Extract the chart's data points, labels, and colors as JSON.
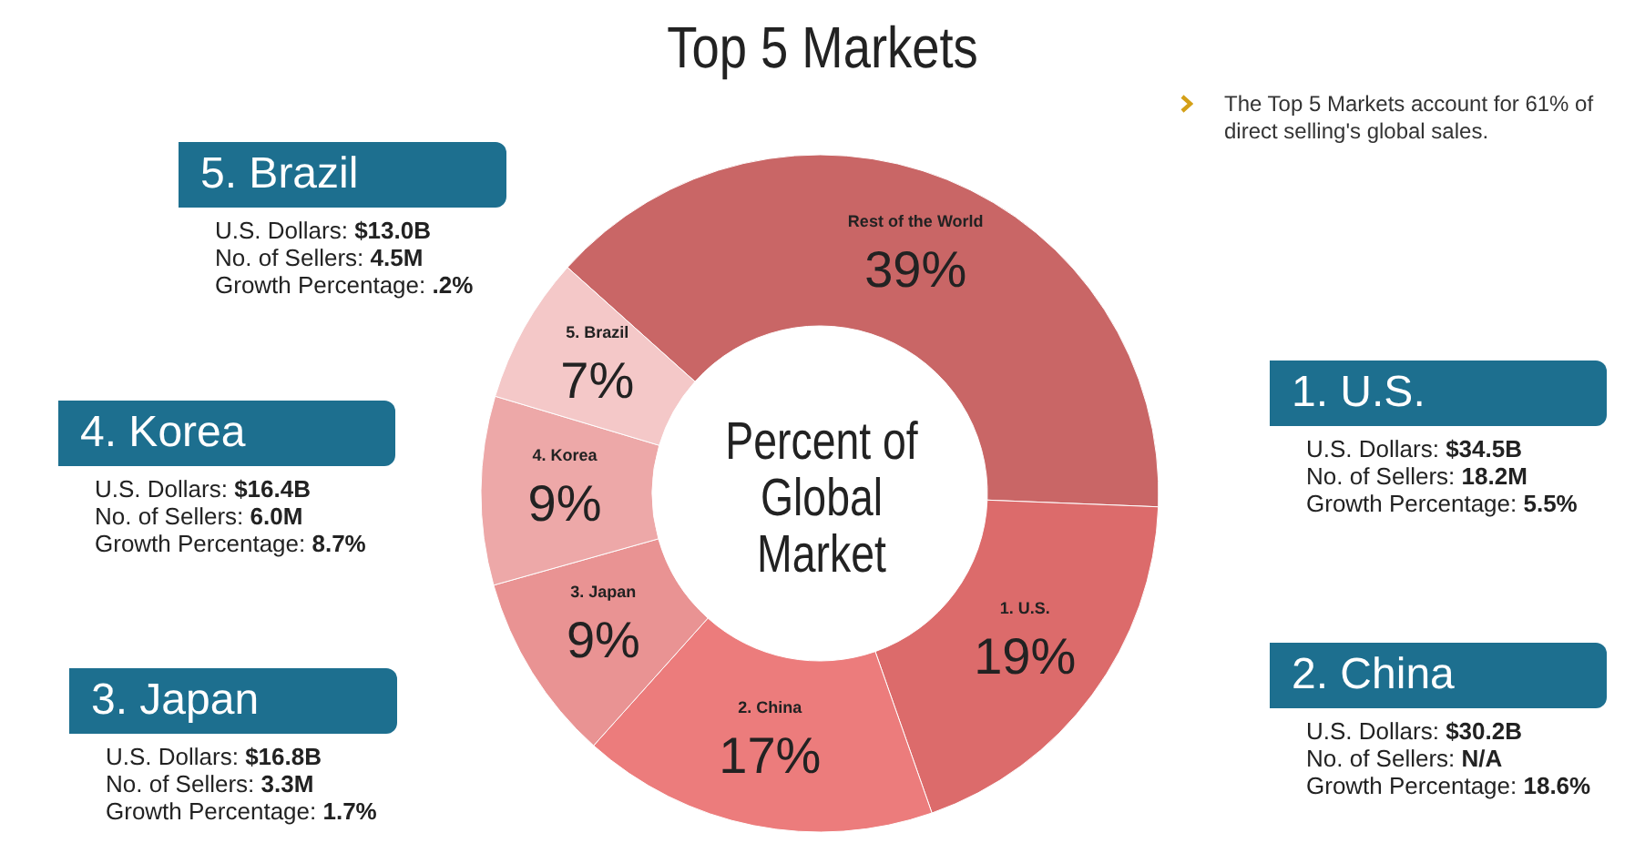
{
  "chart_data": {
    "type": "donut",
    "title": "Top 5 Markets",
    "categories": [
      "Rest of the World",
      "1. U.S.",
      "2. China",
      "3. Japan",
      "4. Korea",
      "5. Brazil"
    ],
    "values": [
      39,
      19,
      17,
      9,
      9,
      7
    ],
    "value_labels": [
      "39%",
      "19%",
      "17%",
      "9%",
      "9%",
      "7%"
    ],
    "colors": [
      "#c96666",
      "#dc6b6b",
      "#ec7c7c",
      "#e99393",
      "#eda8a8",
      "#f4c8c8"
    ],
    "annotations": [
      "The Top 5 Markets account for 61% of direct selling's global sales.",
      "Percent of Global Market",
      "1. U.S.",
      "U.S. Dollars: $34.5B",
      "No. of Sellers: 18.2M",
      "Growth Percentage: 5.5%",
      "2. China",
      "U.S. Dollars: $30.2B",
      "No. of Sellers: N/A",
      "Growth Percentage: 18.6%",
      "3. Japan",
      "U.S. Dollars: $16.8B",
      "No. of Sellers: 3.3M",
      "Growth Percentage: 1.7%",
      "4. Korea",
      "U.S. Dollars: $16.4B",
      "No. of Sellers: 6.0M",
      "Growth Percentage: 8.7%",
      "5. Brazil",
      "U.S. Dollars: $13.0B",
      "No. of Sellers: 4.5M",
      "Growth Percentage: .2%"
    ]
  }
}
